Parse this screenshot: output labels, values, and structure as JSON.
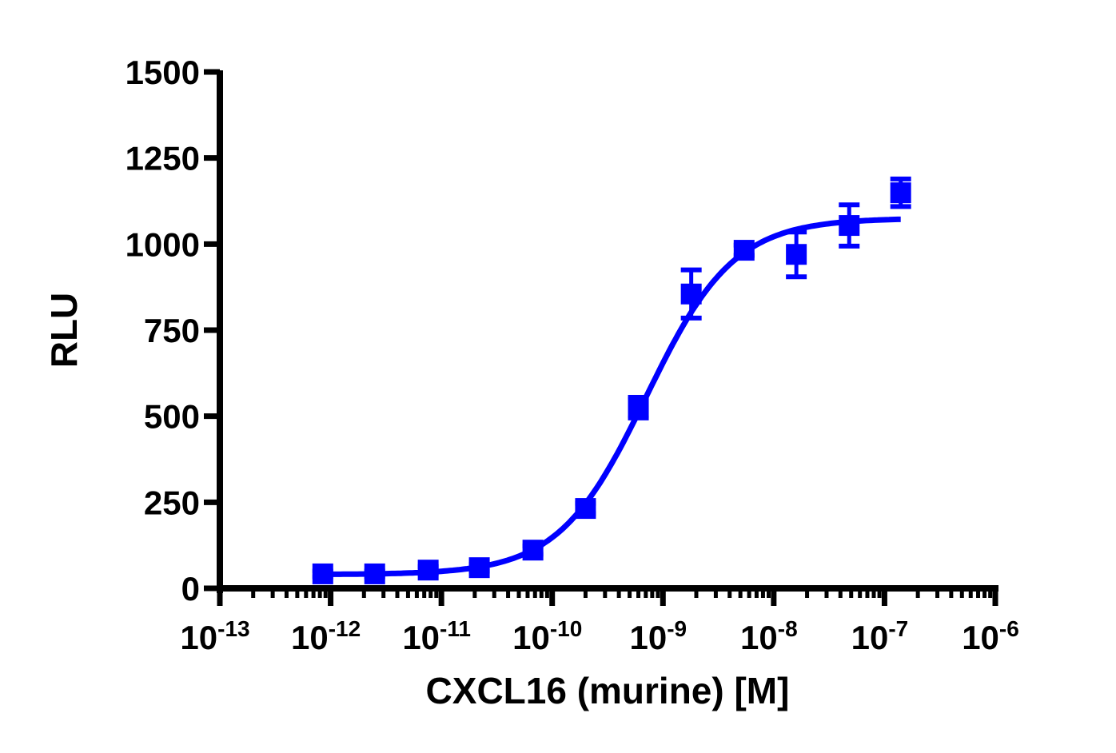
{
  "chart_data": {
    "type": "scatter",
    "title": "",
    "xlabel": "CXCL16 (murine) [M]",
    "ylabel": "RLU",
    "xscale": "log",
    "xlim": [
      1e-13,
      1e-06
    ],
    "ylim": [
      0,
      1500
    ],
    "grid": false,
    "legend": null,
    "y_ticks": [
      0,
      250,
      500,
      750,
      1000,
      1250,
      1500
    ],
    "x_ticks": [
      {
        "base": "10",
        "exp": "-13",
        "value": 1e-13
      },
      {
        "base": "10",
        "exp": "-12",
        "value": 1e-12
      },
      {
        "base": "10",
        "exp": "-11",
        "value": 1e-11
      },
      {
        "base": "10",
        "exp": "-10",
        "value": 1e-10
      },
      {
        "base": "10",
        "exp": "-9",
        "value": 1e-09
      },
      {
        "base": "10",
        "exp": "-8",
        "value": 1e-08
      },
      {
        "base": "10",
        "exp": "-7",
        "value": 1e-07
      },
      {
        "base": "10",
        "exp": "-6",
        "value": 1e-06
      }
    ],
    "series": [
      {
        "name": "CXCL16 (murine)",
        "color": "#0000FF",
        "marker": "square",
        "x": [
          8.5e-13,
          2.5e-12,
          7.6e-12,
          2.2e-11,
          6.7e-11,
          2e-10,
          6e-10,
          1.8e-09,
          5.4e-09,
          1.6e-08,
          4.8e-08,
          1.4e-07
        ],
        "y": [
          42,
          42,
          53,
          60,
          111,
          232,
          525,
          855,
          982,
          970,
          1054,
          1149
        ],
        "error": [
          8,
          8,
          10,
          10,
          12,
          15,
          30,
          70,
          15,
          65,
          60,
          40
        ]
      }
    ],
    "fit": {
      "type": "4PL sigmoid",
      "color": "#0000FF",
      "bottom": 40,
      "top": 1075,
      "logEC50": -9.15,
      "hill": 1.1,
      "x_range": [
        8.5e-13,
        1.4e-07
      ]
    }
  }
}
